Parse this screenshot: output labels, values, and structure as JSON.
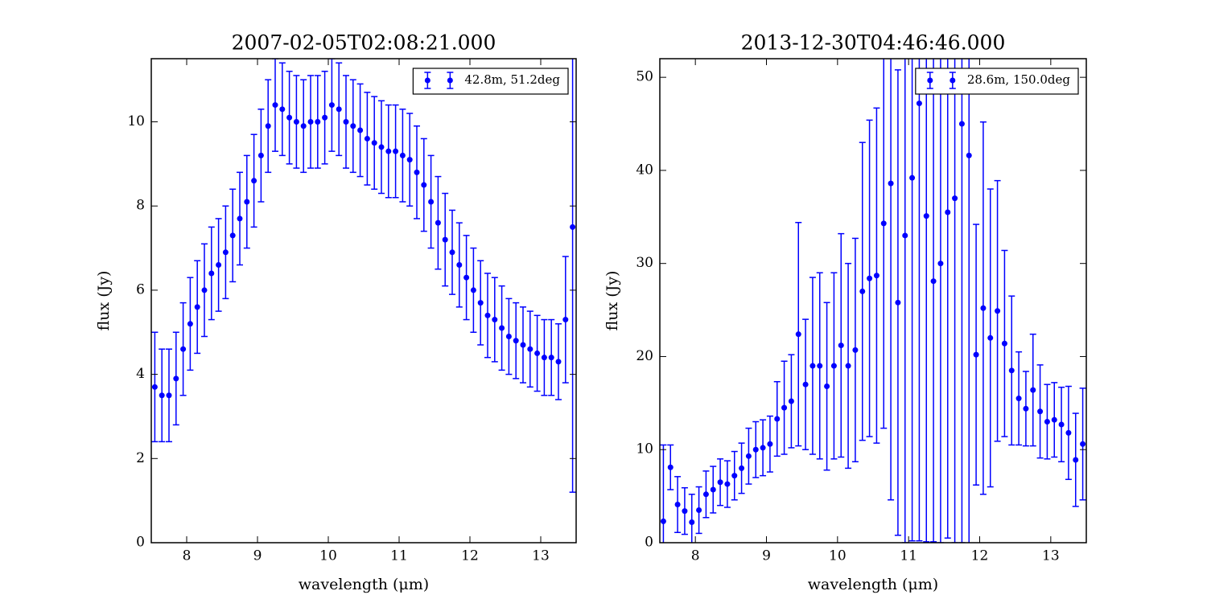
{
  "chart_data": [
    {
      "type": "scatter",
      "title": "2007-02-05T02:08:21.000",
      "xlabel": "wavelength (μm)",
      "ylabel": "flux (Jy)",
      "x": [
        7.55,
        7.65,
        7.75,
        7.85,
        7.95,
        8.05,
        8.15,
        8.25,
        8.35,
        8.45,
        8.55,
        8.65,
        8.75,
        8.85,
        8.95,
        9.05,
        9.15,
        9.25,
        9.35,
        9.45,
        9.55,
        9.65,
        9.75,
        9.85,
        9.95,
        10.05,
        10.15,
        10.25,
        10.35,
        10.45,
        10.55,
        10.65,
        10.75,
        10.85,
        10.95,
        11.05,
        11.15,
        11.25,
        11.35,
        11.45,
        11.55,
        11.65,
        11.75,
        11.85,
        11.95,
        12.05,
        12.15,
        12.25,
        12.35,
        12.45,
        12.55,
        12.65,
        12.75,
        12.85,
        12.95,
        13.05,
        13.15,
        13.25,
        13.35,
        13.45
      ],
      "series": [
        {
          "name": "42.8m, 51.2deg",
          "color": "#0000ff",
          "values": [
            3.7,
            3.5,
            3.5,
            3.9,
            4.6,
            5.2,
            5.6,
            6.0,
            6.4,
            6.6,
            6.9,
            7.3,
            7.7,
            8.1,
            8.6,
            9.2,
            9.9,
            10.4,
            10.3,
            10.1,
            10.0,
            9.9,
            10.0,
            10.0,
            10.1,
            10.4,
            10.3,
            10.0,
            9.9,
            9.8,
            9.6,
            9.5,
            9.4,
            9.3,
            9.3,
            9.2,
            9.1,
            8.8,
            8.5,
            8.1,
            7.6,
            7.2,
            6.9,
            6.6,
            6.3,
            6.0,
            5.7,
            5.4,
            5.3,
            5.1,
            4.9,
            4.8,
            4.7,
            4.6,
            4.5,
            4.4,
            4.4,
            4.3,
            5.3,
            7.5
          ],
          "errors": [
            1.3,
            1.1,
            1.1,
            1.1,
            1.1,
            1.1,
            1.1,
            1.1,
            1.1,
            1.1,
            1.1,
            1.1,
            1.1,
            1.1,
            1.1,
            1.1,
            1.1,
            1.1,
            1.1,
            1.1,
            1.1,
            1.1,
            1.1,
            1.1,
            1.1,
            1.1,
            1.1,
            1.1,
            1.1,
            1.1,
            1.1,
            1.1,
            1.1,
            1.1,
            1.1,
            1.1,
            1.1,
            1.1,
            1.1,
            1.1,
            1.1,
            1.1,
            1.0,
            1.0,
            1.0,
            1.0,
            1.0,
            1.0,
            1.0,
            1.0,
            0.9,
            0.9,
            0.9,
            0.9,
            0.9,
            0.9,
            0.9,
            0.9,
            1.5,
            6.3
          ]
        }
      ],
      "xlim": [
        7.5,
        13.5
      ],
      "ylim": [
        0,
        11.5
      ],
      "xticks": [
        8,
        9,
        10,
        11,
        12,
        13
      ],
      "yticks": [
        0,
        2,
        4,
        6,
        8,
        10
      ],
      "legend": "upper right"
    },
    {
      "type": "scatter",
      "title": "2013-12-30T04:46:46.000",
      "xlabel": "wavelength (μm)",
      "ylabel": "flux (Jy)",
      "x": [
        7.55,
        7.65,
        7.75,
        7.85,
        7.95,
        8.05,
        8.15,
        8.25,
        8.35,
        8.45,
        8.55,
        8.65,
        8.75,
        8.85,
        8.95,
        9.05,
        9.15,
        9.25,
        9.35,
        9.45,
        9.55,
        9.65,
        9.75,
        9.85,
        9.95,
        10.05,
        10.15,
        10.25,
        10.35,
        10.45,
        10.55,
        10.65,
        10.75,
        10.85,
        10.95,
        11.05,
        11.15,
        11.25,
        11.35,
        11.45,
        11.55,
        11.65,
        11.75,
        11.85,
        11.95,
        12.05,
        12.15,
        12.25,
        12.35,
        12.45,
        12.55,
        12.65,
        12.75,
        12.85,
        12.95,
        13.05,
        13.15,
        13.25,
        13.35,
        13.45
      ],
      "series": [
        {
          "name": "28.6m, 150.0deg",
          "color": "#0000ff",
          "values": [
            2.3,
            8.1,
            4.1,
            3.4,
            2.2,
            3.5,
            5.2,
            5.7,
            6.5,
            6.3,
            7.2,
            8.0,
            9.3,
            10.0,
            10.2,
            10.6,
            13.3,
            14.5,
            15.2,
            22.4,
            17.0,
            19.0,
            19.0,
            16.8,
            19.0,
            21.2,
            19.0,
            20.7,
            27.0,
            28.4,
            28.7,
            34.3,
            38.6,
            25.8,
            33.0,
            39.2,
            47.2,
            35.1,
            28.1,
            30.0,
            35.5,
            37.0,
            45.0,
            41.6,
            20.2,
            25.2,
            22.0,
            24.9,
            21.4,
            18.5,
            15.5,
            14.4,
            16.4,
            14.1,
            13.0,
            13.2,
            12.7,
            11.8,
            8.9,
            10.6
          ],
          "errors": [
            8.2,
            2.4,
            3,
            2.5,
            3,
            2.5,
            2.5,
            2.5,
            2.5,
            2.5,
            2.6,
            2.7,
            3,
            3,
            3,
            3,
            4,
            5,
            5,
            12,
            7,
            9.5,
            10,
            9,
            10,
            12,
            11,
            12,
            16,
            17,
            18,
            22,
            34,
            25,
            33,
            39,
            47,
            35,
            28,
            30,
            35,
            37,
            45,
            42,
            14,
            20,
            16,
            14,
            10,
            8,
            5,
            4,
            6,
            5,
            4,
            4,
            4,
            5,
            5,
            6
          ]
        }
      ],
      "xlim": [
        7.5,
        13.5
      ],
      "ylim": [
        0,
        52
      ],
      "xticks": [
        8,
        9,
        10,
        11,
        12,
        13
      ],
      "yticks": [
        0,
        10,
        20,
        30,
        40,
        50
      ],
      "legend": "upper right"
    }
  ]
}
